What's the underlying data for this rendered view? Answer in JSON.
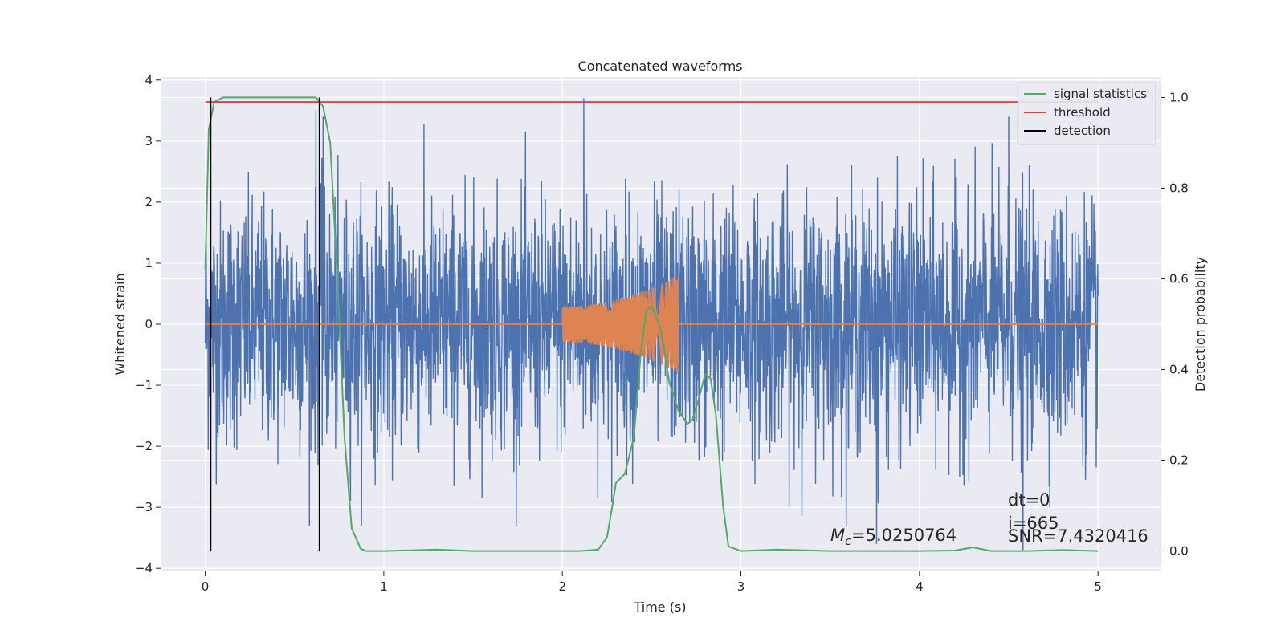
{
  "chart_data": {
    "type": "line",
    "title": "Concatenated waveforms",
    "xlabel": "Time (s)",
    "ylabel_left": "Whitened strain",
    "ylabel_right": "Detection probability",
    "xlim": [
      -0.25,
      5.35
    ],
    "ylim_left": [
      -4.05,
      4.05
    ],
    "ylim_right": [
      -0.045,
      1.045
    ],
    "x_ticks": [
      0,
      1,
      2,
      3,
      4,
      5
    ],
    "y_left_ticks": [
      4,
      3,
      2,
      1,
      0,
      -1,
      -2,
      -3,
      -4
    ],
    "y_left_tick_labels": [
      "4",
      "3",
      "2",
      "1",
      "0",
      "−1",
      "−2",
      "−3",
      "−4"
    ],
    "y_right_ticks": [
      1.0,
      0.8,
      0.6,
      0.4,
      0.2,
      0.0
    ],
    "y_right_tick_labels": [
      "1.0",
      "0.8",
      "0.6",
      "0.4",
      "0.2",
      "0.0"
    ],
    "grid": true,
    "legend_position": "top-right",
    "colors": {
      "background": "#eaeaf2",
      "grid": "#ffffff",
      "strain": "#4c72b0",
      "template": "#dd8452",
      "signal_statistics": "#55a868",
      "threshold": "#c44e52",
      "detection": "#000000"
    },
    "series": [
      {
        "name": "",
        "axis": "left",
        "kind": "noisy-strain",
        "x_range": [
          0,
          5
        ],
        "typical_amplitude": 1.0,
        "peak_range": [
          -3.6,
          3.7
        ],
        "notable_spikes": [
          [
            0.03,
            -2.7
          ],
          [
            0.62,
            3.5
          ],
          [
            0.66,
            3.4
          ],
          [
            2.12,
            3.7
          ],
          [
            3.76,
            -3.6
          ],
          [
            4.5,
            3.4
          ],
          [
            4.58,
            -3.7
          ]
        ]
      },
      {
        "name": "",
        "axis": "left",
        "kind": "chirp-template",
        "x_range": [
          2.0,
          2.65
        ],
        "amplitude_start": 0.3,
        "amplitude_end": 0.8
      },
      {
        "name": "signal statistics",
        "axis": "right",
        "x": [
          0.0,
          0.02,
          0.05,
          0.1,
          0.2,
          0.5,
          0.62,
          0.66,
          0.7,
          0.74,
          0.78,
          0.82,
          0.87,
          0.9,
          1.0,
          1.3,
          1.5,
          2.0,
          2.1,
          2.2,
          2.25,
          2.28,
          2.3,
          2.35,
          2.4,
          2.44,
          2.47,
          2.5,
          2.55,
          2.6,
          2.65,
          2.7,
          2.73,
          2.76,
          2.8,
          2.83,
          2.86,
          2.9,
          2.93,
          3.0,
          3.2,
          3.5,
          4.0,
          4.2,
          4.3,
          4.4,
          4.6,
          4.8,
          5.0
        ],
        "y": [
          0.62,
          0.93,
          0.99,
          1.0,
          1.0,
          1.0,
          1.0,
          0.98,
          0.9,
          0.6,
          0.25,
          0.05,
          0.005,
          0.0,
          0.0,
          0.003,
          0.0,
          0.0,
          0.0,
          0.003,
          0.03,
          0.1,
          0.15,
          0.17,
          0.25,
          0.44,
          0.53,
          0.54,
          0.49,
          0.37,
          0.31,
          0.28,
          0.29,
          0.33,
          0.39,
          0.38,
          0.3,
          0.1,
          0.01,
          0.0,
          0.003,
          0.0,
          0.0,
          0.001,
          0.008,
          0.0,
          0.0,
          0.002,
          0.0
        ]
      },
      {
        "name": "threshold",
        "axis": "right",
        "x": [
          0,
          5
        ],
        "y": [
          0.99,
          0.99
        ]
      },
      {
        "name": "detection",
        "axis": "right",
        "kind": "vertical-lines",
        "x": [
          0.03,
          0.64
        ],
        "y_range": [
          0.0,
          1.0
        ]
      }
    ],
    "annotations": {
      "mc_text": "=5.0250764",
      "dt_text": "dt=0",
      "i_text": "i=665",
      "snr_text": "SNR=7.4320416"
    }
  }
}
